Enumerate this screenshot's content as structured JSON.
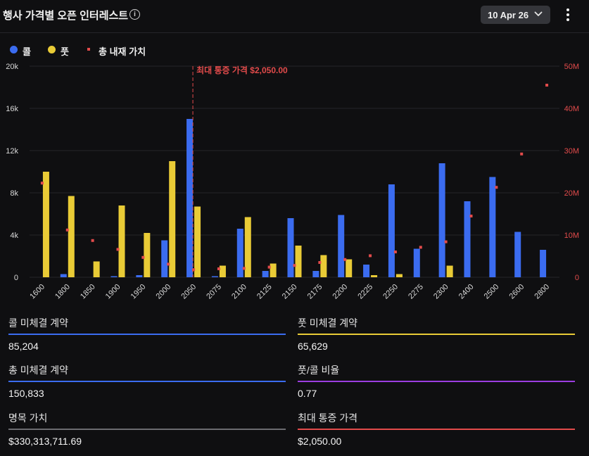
{
  "header": {
    "title": "행사 가격별 오픈 인터레스트",
    "info_icon": "info-icon",
    "date_label": "10 Apr 26",
    "dropdown_icon": "chevron-down-icon",
    "menu_icon": "more-vertical-icon"
  },
  "legend": {
    "call": "콜",
    "put": "풋",
    "intrinsic": "총 내재 가치"
  },
  "colors": {
    "call": "#3b6cf0",
    "put": "#e9cb36",
    "intrinsic": "#e24b4b",
    "background": "#0f0f11",
    "total_line": "#3b6cf0",
    "ratio_line": "#9b3de0",
    "notional_line": "#6b6b70",
    "maxpain_line": "#e24b4b"
  },
  "chart_data": {
    "type": "bar",
    "categories": [
      "1600",
      "1800",
      "1850",
      "1900",
      "1950",
      "2000",
      "2050",
      "2075",
      "2100",
      "2125",
      "2150",
      "2175",
      "2200",
      "2225",
      "2250",
      "2275",
      "2300",
      "2400",
      "2500",
      "2600",
      "2800"
    ],
    "series": [
      {
        "name": "콜",
        "axis": "left",
        "values": [
          0,
          300,
          0,
          100,
          200,
          3500,
          15000,
          100,
          4600,
          600,
          5600,
          600,
          5900,
          1200,
          8800,
          2700,
          10800,
          7200,
          9500,
          4300,
          2600
        ]
      },
      {
        "name": "풋",
        "axis": "left",
        "values": [
          10000,
          7700,
          1500,
          6800,
          4200,
          11000,
          6700,
          1100,
          5700,
          1300,
          3000,
          2100,
          1700,
          200,
          300,
          0,
          1100,
          0,
          0,
          0,
          0
        ]
      },
      {
        "name": "총 내재 가치",
        "axis": "right",
        "type": "scatter",
        "values": [
          22300000,
          11200000,
          8700000,
          6600000,
          4700000,
          3100000,
          1800000,
          2000000,
          2100000,
          2400000,
          2800000,
          3500000,
          4200000,
          5100000,
          6000000,
          7100000,
          8400000,
          14500000,
          21300000,
          29200000,
          45500000
        ]
      }
    ],
    "left_axis": {
      "ylim": [
        0,
        20000
      ],
      "ticks": [
        "0",
        "4k",
        "8k",
        "12k",
        "16k",
        "20k"
      ]
    },
    "right_axis": {
      "ylim": [
        0,
        50000000
      ],
      "ticks": [
        "0",
        "10M",
        "20M",
        "30M",
        "40M",
        "50M"
      ]
    },
    "annotation": {
      "category": "2050",
      "text": "최대 통증 가격 $2,050.00"
    },
    "grid": true,
    "legend_position": "top-left"
  },
  "stats": {
    "call_oi_label": "콜 미체결 계약",
    "call_oi_value": "85,204",
    "put_oi_label": "풋 미체결 계약",
    "put_oi_value": "65,629",
    "total_oi_label": "총 미체결 계약",
    "total_oi_value": "150,833",
    "ratio_label": "풋/콜 비율",
    "ratio_value": "0.77",
    "notional_label": "명목 가치",
    "notional_value": "$330,313,711.69",
    "maxpain_label": "최대 통증 가격",
    "maxpain_value": "$2,050.00"
  }
}
